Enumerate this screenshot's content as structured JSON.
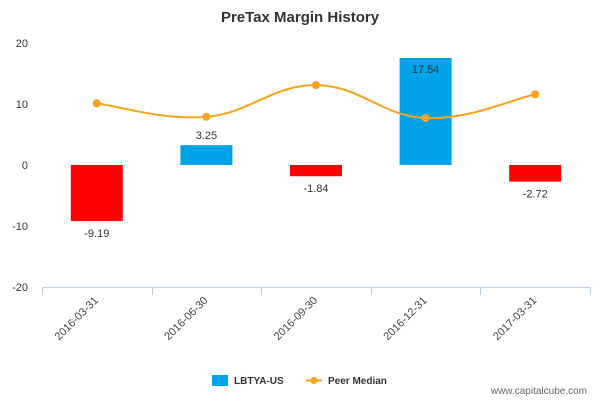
{
  "chart_data": {
    "type": "bar",
    "title": "PreTax Margin History",
    "categories": [
      "2016-03-31",
      "2016-06-30",
      "2016-09-30",
      "2016-12-31",
      "2017-03-31"
    ],
    "series": [
      {
        "name": "LBTYA-US",
        "type": "bar",
        "values": [
          -9.19,
          3.25,
          -1.84,
          17.54,
          -2.72
        ],
        "labels": [
          "-9.19",
          "3.25",
          "-1.84",
          "17.54",
          "-2.72"
        ],
        "positive_color": "#00a2e8",
        "negative_color": "#ff0000"
      },
      {
        "name": "Peer Median",
        "type": "line",
        "values": [
          10.1,
          7.9,
          13.1,
          7.7,
          11.6
        ],
        "color": "#f7a31c"
      }
    ],
    "ylim": [
      -20,
      20
    ],
    "yticks": [
      -20,
      -10,
      0,
      10,
      20
    ],
    "ytick_labels": [
      "-20",
      "-10",
      "0",
      "10",
      "20"
    ],
    "legend_position": "bottom-center",
    "grid": false
  },
  "watermark": "www.capitalcube.com"
}
